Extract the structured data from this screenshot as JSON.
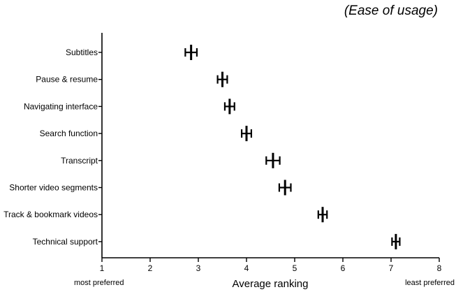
{
  "subtitle": "(Ease of usage)",
  "chart_data": {
    "type": "scatter",
    "title": "",
    "subtitle": "(Ease of usage)",
    "xlabel": "Average ranking",
    "ylabel": "",
    "xlim": [
      1,
      8
    ],
    "x_ticks": [
      1,
      2,
      3,
      4,
      5,
      6,
      7,
      8
    ],
    "x_left_label": "most preferred",
    "x_right_label": "least preferred",
    "grid": false,
    "categories": [
      "Subtitles",
      "Pause & resume",
      "Navigating interface",
      "Search function",
      "Transcript",
      "Shorter video segments",
      "Track & bookmark videos",
      "Technical support"
    ],
    "values": [
      2.85,
      3.5,
      3.65,
      4.0,
      4.55,
      4.8,
      5.58,
      7.1
    ],
    "errors": [
      0.12,
      0.1,
      0.1,
      0.1,
      0.14,
      0.12,
      0.09,
      0.08
    ]
  }
}
